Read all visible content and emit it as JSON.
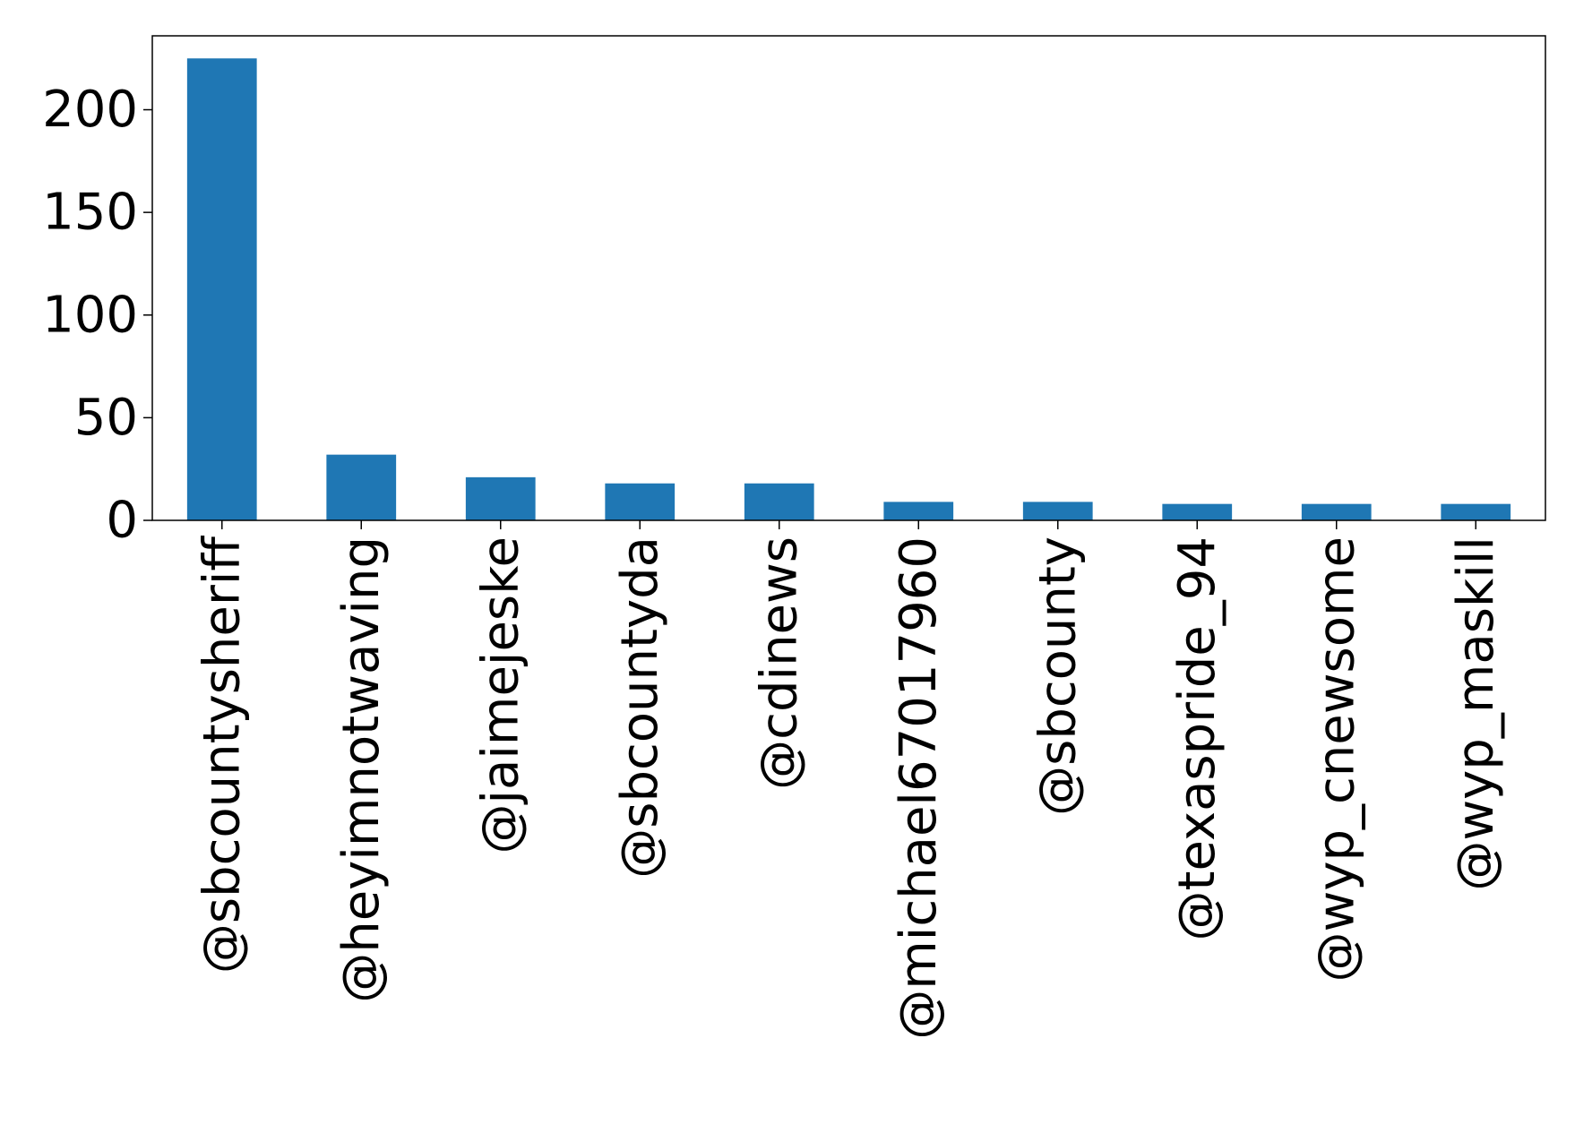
{
  "chart_data": {
    "type": "bar",
    "title": "",
    "xlabel": "",
    "ylabel": "",
    "categories": [
      "@sbcountysheriff",
      "@heyimnotwaving",
      "@jaimejeske",
      "@sbcountyda",
      "@cdinews",
      "@michael67017960",
      "@sbcounty",
      "@texaspride_94",
      "@wyp_cnewsome",
      "@wyp_maskill"
    ],
    "values": [
      225,
      32,
      21,
      18,
      18,
      9,
      9,
      8,
      8,
      8
    ],
    "ylim": [
      0,
      236
    ],
    "yticks": [
      0,
      50,
      100,
      150,
      200
    ],
    "grid": false,
    "legend": "none",
    "bar_color": "#1f77b4",
    "axis_color": "#000000"
  }
}
